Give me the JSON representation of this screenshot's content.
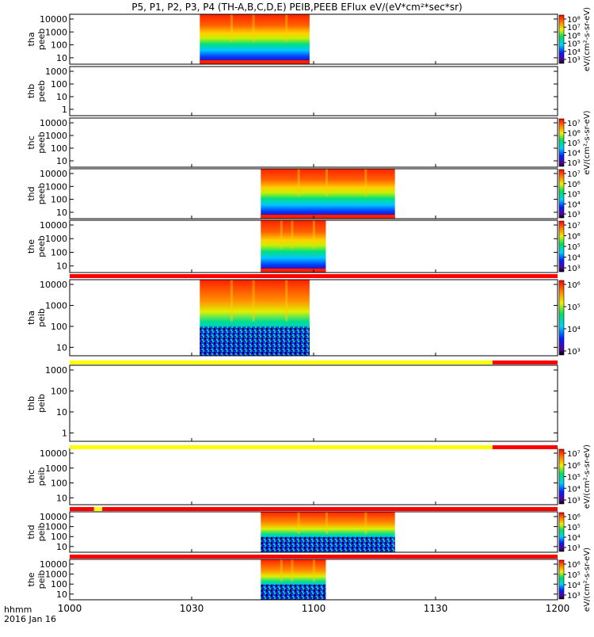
{
  "title": "P5, P1, P2, P3, P4 (TH-A,B,C,D,E) PEIB,PEEB EFlux eV/(eV*cm²*sec*sr)",
  "time_label_1": "hhmm",
  "time_label_2": "2016 Jan 16",
  "chart_data": {
    "type": "heatmap",
    "x_ticks": [
      "1000",
      "1030",
      "1100",
      "1130",
      "1200"
    ],
    "x_range": [
      "10:00",
      "12:00"
    ],
    "colorbar_label": "eV/(cm²-s-sr-eV)",
    "panels": [
      {
        "name": "tha peeb",
        "line1": "tha",
        "line2": "peeb",
        "y_ticks": [
          "10000",
          "1000",
          "100",
          "10"
        ],
        "log_y": true,
        "data_intervals": [
          [
            "10:32",
            "10:59"
          ]
        ],
        "colorbar_ticks": [
          "10⁸",
          "10⁷",
          "10⁶",
          "10⁵",
          "10⁴",
          "10³"
        ],
        "colorbar_label": "eV/(cm²-s-sr-eV)"
      },
      {
        "name": "thb peeb",
        "line1": "thb",
        "line2": "peeb",
        "y_ticks": [
          "1000",
          "100",
          "10",
          "1"
        ],
        "log_y": true,
        "data_intervals": [],
        "colorbar_ticks": [],
        "colorbar_label": ""
      },
      {
        "name": "thc peeb",
        "line1": "thc",
        "line2": "peeb",
        "y_ticks": [
          "10000",
          "1000",
          "100",
          "10"
        ],
        "log_y": true,
        "data_intervals": [],
        "colorbar_ticks": [
          "10⁷",
          "10⁶",
          "10⁵",
          "10⁴",
          "10³"
        ],
        "colorbar_label": "eV/(cm²-s-sr-eV)"
      },
      {
        "name": "thd peeb",
        "line1": "thd",
        "line2": "peeb",
        "y_ticks": [
          "10000",
          "1000",
          "100",
          "10"
        ],
        "log_y": true,
        "data_intervals": [
          [
            "10:47",
            "11:20"
          ]
        ],
        "colorbar_ticks": [
          "10⁷",
          "10⁶",
          "10⁵",
          "10⁴",
          "10³"
        ],
        "colorbar_label": ""
      },
      {
        "name": "the peeb",
        "line1": "the",
        "line2": "peeb",
        "y_ticks": [
          "10000",
          "1000",
          "100",
          "10"
        ],
        "log_y": true,
        "data_intervals": [
          [
            "10:47",
            "11:03"
          ]
        ],
        "colorbar_ticks": [
          "10⁷",
          "10⁶",
          "10⁵",
          "10⁴",
          "10³"
        ],
        "colorbar_label": ""
      },
      {
        "name": "tha peib",
        "line1": "tha",
        "line2": "peib",
        "y_ticks": [
          "10000",
          "1000",
          "100",
          "10"
        ],
        "log_y": true,
        "data_intervals": [
          [
            "10:32",
            "10:59"
          ]
        ],
        "colorbar_ticks": [
          "10⁶",
          "10⁵",
          "10⁴",
          "10³"
        ],
        "colorbar_label": ""
      },
      {
        "name": "thb peib",
        "line1": "thb",
        "line2": "peib",
        "y_ticks": [
          "1000",
          "100",
          "10",
          "1"
        ],
        "log_y": true,
        "data_intervals": [],
        "colorbar_ticks": [],
        "colorbar_label": ""
      },
      {
        "name": "thc peib",
        "line1": "thc",
        "line2": "peib",
        "y_ticks": [
          "10000",
          "1000",
          "100",
          "10"
        ],
        "log_y": true,
        "data_intervals": [],
        "colorbar_ticks": [
          "10⁷",
          "10⁶",
          "10⁵",
          "10⁴",
          "10³"
        ],
        "colorbar_label": "eV/(cm²-s-sr-eV)"
      },
      {
        "name": "thd peib",
        "line1": "thd",
        "line2": "peib",
        "y_ticks": [
          "10000",
          "1000",
          "100",
          "10"
        ],
        "log_y": true,
        "data_intervals": [
          [
            "10:47",
            "11:20"
          ]
        ],
        "colorbar_ticks": [
          "10⁶",
          "10⁵",
          "10⁴",
          "10³"
        ],
        "colorbar_label": ""
      },
      {
        "name": "the peib",
        "line1": "the",
        "line2": "peib",
        "y_ticks": [
          "10000",
          "1000",
          "100",
          "10"
        ],
        "log_y": true,
        "data_intervals": [
          [
            "10:47",
            "11:03"
          ]
        ],
        "colorbar_ticks": [
          "10⁶",
          "10⁵",
          "10⁴",
          "10³"
        ],
        "colorbar_label": "eV/(cm²-s-sr-eV)"
      }
    ],
    "status_bars": [
      {
        "after_panel": 4,
        "segments": [
          {
            "from": "10:00",
            "to": "12:00",
            "color": "#ff0000"
          }
        ]
      },
      {
        "after_panel": 5,
        "segments": [
          {
            "from": "10:00",
            "to": "11:44",
            "color": "#ffff00"
          },
          {
            "from": "11:44",
            "to": "12:00",
            "color": "#ff0000"
          }
        ]
      },
      {
        "after_panel": 6,
        "segments": [
          {
            "from": "10:00",
            "to": "11:44",
            "color": "#ffff00"
          },
          {
            "from": "11:44",
            "to": "12:00",
            "color": "#ff0000"
          }
        ]
      },
      {
        "after_panel": 7,
        "segments": [
          {
            "from": "10:00",
            "to": "10:06",
            "color": "#ff0000"
          },
          {
            "from": "10:06",
            "to": "10:08",
            "color": "#ffff00"
          },
          {
            "from": "10:08",
            "to": "12:00",
            "color": "#ff0000"
          }
        ]
      },
      {
        "after_panel": 8,
        "segments": [
          {
            "from": "10:00",
            "to": "12:00",
            "color": "#ff0000"
          }
        ]
      }
    ]
  }
}
